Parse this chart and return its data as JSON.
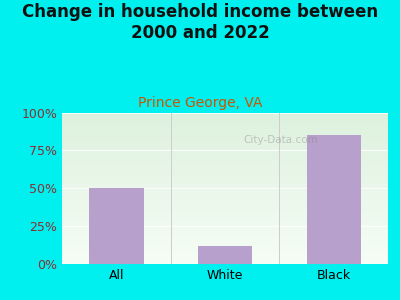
{
  "title": "Change in household income between\n2000 and 2022",
  "subtitle": "Prince George, VA",
  "categories": [
    "All",
    "White",
    "Black"
  ],
  "values": [
    50,
    12,
    85
  ],
  "bar_color": "#b8a0cc",
  "outer_bg": "#00efef",
  "plot_bg_top": "#ddf0dd",
  "plot_bg_bottom": "#f5fdf5",
  "yticks": [
    0,
    25,
    50,
    75,
    100
  ],
  "ytick_labels": [
    "0%",
    "25%",
    "50%",
    "75%",
    "100%"
  ],
  "ylabel_color": "#8b3030",
  "title_color": "#111111",
  "subtitle_color": "#cc5500",
  "watermark": "City-Data.com",
  "title_fontsize": 12,
  "subtitle_fontsize": 10,
  "tick_fontsize": 9,
  "xlabel_fontsize": 9,
  "ylim": [
    0,
    100
  ]
}
